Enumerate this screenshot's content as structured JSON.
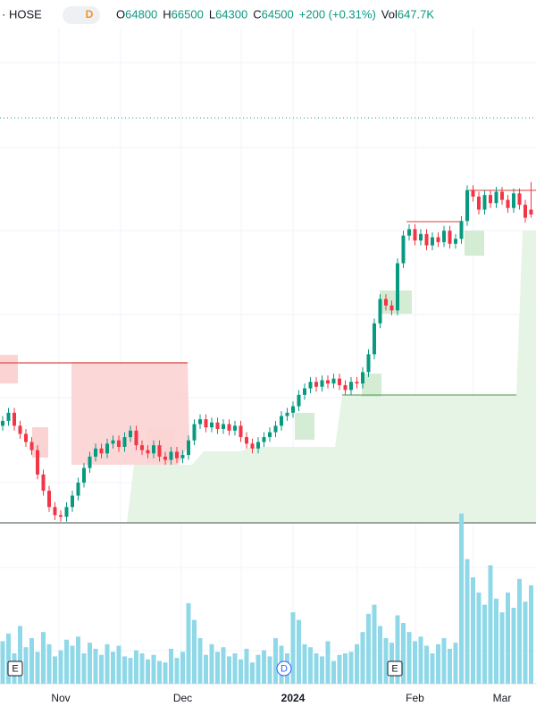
{
  "header": {
    "exchange": "· HOSE",
    "interval": "D",
    "fields": [
      {
        "label": "O",
        "value": "64800"
      },
      {
        "label": "H",
        "value": "66500"
      },
      {
        "label": "L",
        "value": "64300"
      },
      {
        "label": "C",
        "value": "64500"
      }
    ],
    "change": "+200 (+0.31%)",
    "vol_label": "Vol",
    "vol_value": "647.7K"
  },
  "events": [
    "E",
    "D",
    "E"
  ],
  "chart_data": {
    "type": "candlestick",
    "up_color": "#089981",
    "down_color": "#f23645",
    "volume_color": "#8fd8e8",
    "categories": [
      null,
      null,
      null,
      null,
      null,
      null,
      null,
      null,
      null,
      null,
      "Nov",
      null,
      null,
      null,
      null,
      null,
      null,
      null,
      null,
      null,
      null,
      null,
      null,
      null,
      null,
      null,
      null,
      null,
      null,
      null,
      null,
      "Dec",
      null,
      null,
      null,
      null,
      null,
      null,
      null,
      null,
      null,
      null,
      null,
      null,
      null,
      null,
      null,
      null,
      null,
      null,
      "2024",
      null,
      null,
      null,
      null,
      null,
      null,
      null,
      null,
      null,
      null,
      null,
      null,
      null,
      null,
      null,
      null,
      null,
      null,
      null,
      null,
      "Feb",
      null,
      null,
      null,
      null,
      null,
      null,
      null,
      null,
      null,
      null,
      null,
      null,
      null,
      null,
      "Mar",
      null,
      null,
      null,
      null,
      null
    ],
    "open": [
      51500,
      51800,
      52300,
      51500,
      51000,
      50500,
      50000,
      48500,
      47500,
      46500,
      46000,
      45900,
      46500,
      47200,
      48000,
      48900,
      49600,
      50100,
      49800,
      50400,
      50600,
      50200,
      50800,
      51200,
      50300,
      50000,
      49800,
      50300,
      49600,
      49400,
      49900,
      49500,
      49700,
      50600,
      51600,
      51900,
      51400,
      51700,
      51300,
      51600,
      51200,
      51500,
      50800,
      50400,
      50100,
      50500,
      50800,
      51100,
      51500,
      52100,
      52300,
      52700,
      53400,
      53800,
      54200,
      53900,
      54300,
      54100,
      54400,
      54000,
      53700,
      54200,
      54100,
      54800,
      55900,
      57800,
      59300,
      58900,
      58600,
      61500,
      63200,
      63600,
      62900,
      63300,
      62600,
      63100,
      62800,
      63500,
      62700,
      63000,
      64100,
      66000,
      65600,
      64800,
      65700,
      65200,
      65900,
      65400,
      64900,
      65800,
      65100,
      64800
    ],
    "high": [
      52100,
      52600,
      52600,
      51800,
      51300,
      50800,
      50300,
      48800,
      47800,
      46800,
      46300,
      46800,
      47500,
      48300,
      49200,
      49900,
      50400,
      50400,
      50700,
      50900,
      50900,
      51100,
      51500,
      51500,
      50600,
      50300,
      50600,
      50600,
      49900,
      50200,
      50200,
      50000,
      50900,
      51900,
      52200,
      52200,
      52000,
      52000,
      51900,
      51900,
      51800,
      51800,
      51100,
      50700,
      50800,
      51100,
      51400,
      51800,
      52400,
      52600,
      53000,
      53700,
      54100,
      54500,
      54500,
      54600,
      54600,
      54700,
      54700,
      54300,
      54500,
      54500,
      55100,
      56200,
      58100,
      59600,
      59600,
      59200,
      61800,
      63500,
      63900,
      63900,
      63600,
      63600,
      63400,
      63400,
      63800,
      63800,
      63300,
      64400,
      66300,
      66300,
      65900,
      66000,
      66000,
      66200,
      66200,
      65700,
      66100,
      66100,
      65400,
      66500
    ],
    "low": [
      51200,
      51500,
      51200,
      50700,
      50200,
      49700,
      48200,
      47200,
      46200,
      45700,
      45600,
      45600,
      46200,
      46900,
      47700,
      48600,
      49300,
      49500,
      49500,
      50100,
      49900,
      49900,
      50500,
      50000,
      49700,
      49500,
      49500,
      49300,
      49100,
      49100,
      49200,
      49200,
      49400,
      50300,
      51300,
      51100,
      51100,
      51000,
      51000,
      50900,
      50900,
      50500,
      50100,
      49800,
      49800,
      50200,
      50500,
      50800,
      51200,
      51800,
      52000,
      52400,
      53100,
      53500,
      53600,
      53600,
      53800,
      53800,
      53700,
      53400,
      53400,
      53800,
      53800,
      54500,
      55600,
      57500,
      58600,
      58300,
      58300,
      61200,
      62900,
      62600,
      62600,
      62300,
      62300,
      62500,
      62500,
      62400,
      62400,
      62700,
      63800,
      65300,
      64500,
      64500,
      64900,
      64900,
      65100,
      64600,
      64600,
      64800,
      64000,
      64300
    ],
    "close": [
      51800,
      52300,
      51500,
      51000,
      50500,
      50000,
      48500,
      47500,
      46500,
      46000,
      45900,
      46500,
      47200,
      48000,
      48900,
      49600,
      50100,
      49800,
      50400,
      50600,
      50200,
      50800,
      51200,
      50300,
      50000,
      49800,
      50300,
      49600,
      49400,
      49900,
      49500,
      49700,
      50600,
      51600,
      51900,
      51400,
      51700,
      51300,
      51600,
      51200,
      51500,
      50800,
      50400,
      50100,
      50500,
      50800,
      51100,
      51500,
      52100,
      52300,
      52700,
      53400,
      53800,
      54200,
      53900,
      54300,
      54100,
      54400,
      54000,
      53700,
      54200,
      54100,
      54800,
      55900,
      57800,
      59300,
      58900,
      58600,
      61500,
      63200,
      63600,
      62900,
      63300,
      62600,
      63100,
      62800,
      63500,
      62700,
      63000,
      64100,
      66000,
      65600,
      64800,
      65700,
      65200,
      65900,
      65400,
      64900,
      65800,
      65100,
      64300,
      64500
    ],
    "volume": [
      280000,
      330000,
      200000,
      380000,
      240000,
      300000,
      210000,
      340000,
      260000,
      180000,
      220000,
      290000,
      250000,
      310000,
      200000,
      270000,
      230000,
      190000,
      260000,
      210000,
      250000,
      180000,
      170000,
      220000,
      200000,
      160000,
      190000,
      150000,
      140000,
      230000,
      170000,
      210000,
      530000,
      420000,
      300000,
      190000,
      260000,
      210000,
      240000,
      180000,
      200000,
      160000,
      230000,
      140000,
      190000,
      220000,
      180000,
      300000,
      250000,
      200000,
      470000,
      420000,
      260000,
      240000,
      200000,
      180000,
      280000,
      150000,
      190000,
      200000,
      210000,
      260000,
      340000,
      460000,
      520000,
      380000,
      300000,
      270000,
      450000,
      400000,
      340000,
      280000,
      310000,
      250000,
      200000,
      260000,
      300000,
      230000,
      270000,
      1120000,
      820000,
      700000,
      600000,
      520000,
      780000,
      560000,
      470000,
      600000,
      500000,
      690000,
      540000,
      647700
    ],
    "ylim": [
      44700,
      76050
    ],
    "y2lim": [
      0,
      1200000
    ]
  }
}
